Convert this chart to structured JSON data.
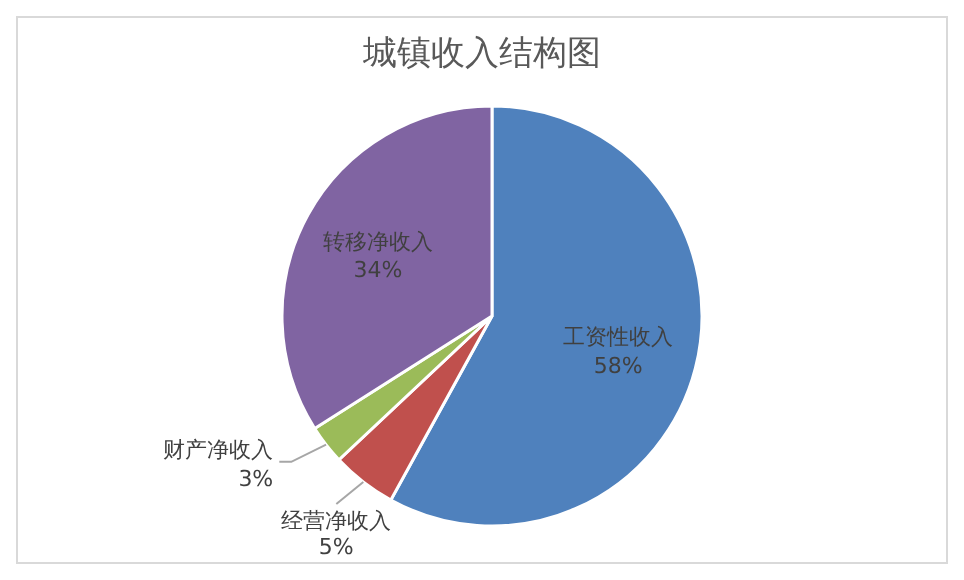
{
  "chart_data": {
    "type": "pie",
    "title": "城镇收入结构图",
    "categories": [
      "工资性收入",
      "经营净收入",
      "财产净收入",
      "转移净收入"
    ],
    "values": [
      58,
      5,
      3,
      34
    ],
    "value_labels": [
      "58%",
      "5%",
      "3%",
      "34%"
    ],
    "colors": [
      "#4f81bd",
      "#c0504d",
      "#9bbb59",
      "#8064a2"
    ],
    "legend": false
  }
}
